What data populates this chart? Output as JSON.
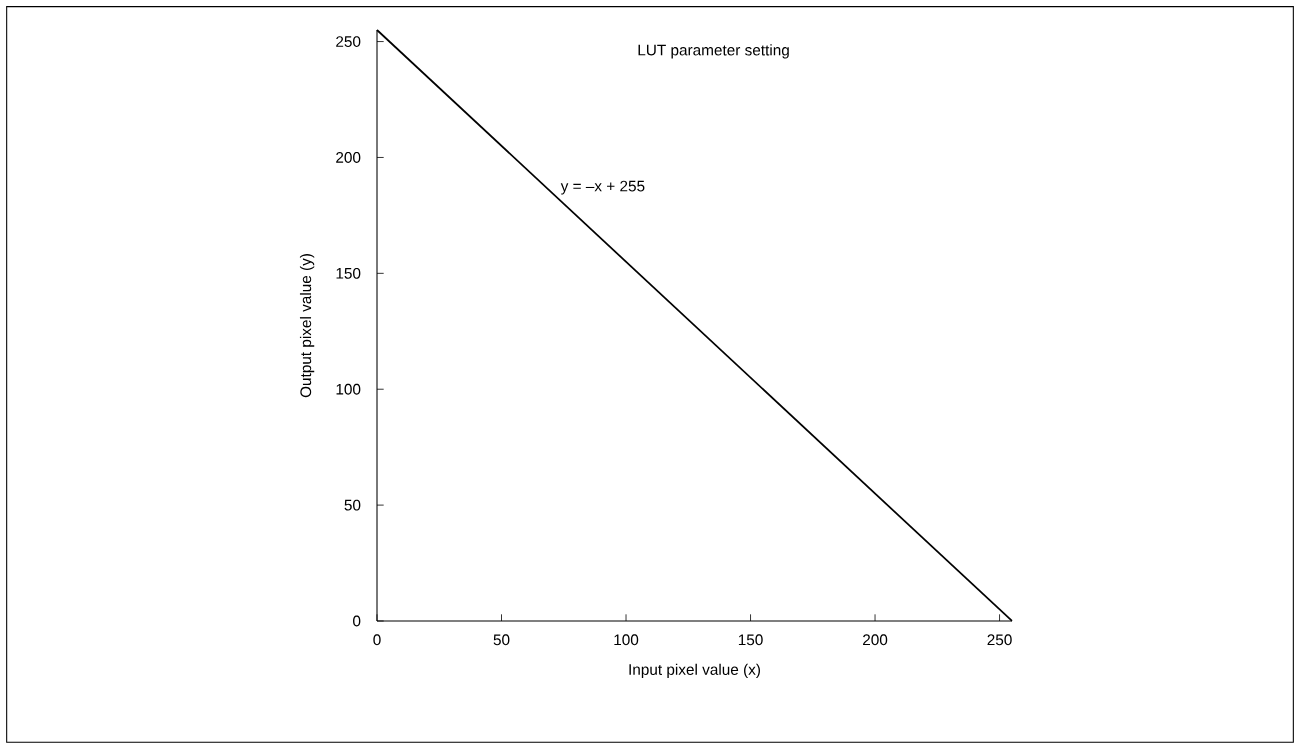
{
  "chart_data": {
    "type": "line",
    "title": "LUT parameter setting",
    "xlabel": "Input pixel value (x)",
    "ylabel": "Output pixel value (y)",
    "x": [
      0,
      255
    ],
    "series": [
      {
        "color": "#000000",
        "values": [
          255,
          0
        ]
      }
    ],
    "annotations": [
      {
        "text": "y = –x + 255",
        "x": 70,
        "y": 187
      }
    ],
    "xlim": [
      0,
      255
    ],
    "ylim": [
      0,
      255
    ],
    "xticks": [
      0,
      50,
      100,
      150,
      200,
      250
    ],
    "yticks": [
      0,
      50,
      100,
      150,
      200,
      250
    ],
    "grid": false,
    "line_style": "solid"
  }
}
